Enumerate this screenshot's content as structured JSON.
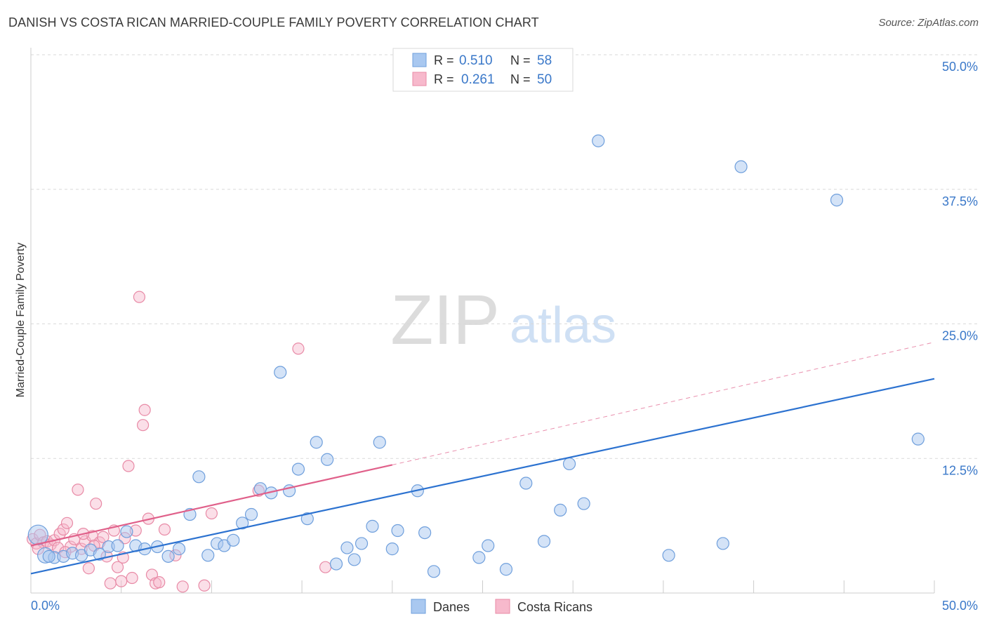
{
  "title": "DANISH VS COSTA RICAN MARRIED-COUPLE FAMILY POVERTY CORRELATION CHART",
  "source": "Source: ZipAtlas.com",
  "watermark": {
    "zip": "ZIP",
    "atlas": "atlas"
  },
  "colors": {
    "danes_fill": "#a9c8f0",
    "danes_stroke": "#6f9fdc",
    "danes_line": "#2c72d0",
    "costa_fill": "#f7b9cc",
    "costa_stroke": "#e88aa6",
    "costa_line": "#e0608a",
    "axis_text": "#3a78c9",
    "grid": "#d9d9d9"
  },
  "legend": {
    "rows": [
      {
        "r_label": "R =",
        "r_value": "0.510",
        "n_label": "N =",
        "n_value": "58"
      },
      {
        "r_label": "R =",
        "r_value": "0.261",
        "n_label": "N =",
        "n_value": "50"
      }
    ]
  },
  "bottom_legend": {
    "danes": "Danes",
    "costa": "Costa Ricans"
  },
  "chart_data": {
    "type": "scatter",
    "title": "DANISH VS COSTA RICAN MARRIED-COUPLE FAMILY POVERTY CORRELATION CHART",
    "xlabel": "",
    "ylabel": "Married-Couple Family Poverty",
    "xlim": [
      0,
      50
    ],
    "ylim": [
      0,
      50
    ],
    "x_tick_labels": [
      "0.0%",
      "50.0%"
    ],
    "y_tick_labels": [
      "12.5%",
      "25.0%",
      "37.5%",
      "50.0%"
    ],
    "y_tick_values": [
      12.5,
      25.0,
      37.5,
      50.0
    ],
    "series": [
      {
        "name": "Danes",
        "R": 0.51,
        "N": 58,
        "trend": {
          "x": [
            0,
            50
          ],
          "y": [
            1.8,
            19.9
          ]
        },
        "points": [
          [
            0.4,
            5.4
          ],
          [
            0.8,
            3.5
          ],
          [
            1.3,
            3.3
          ],
          [
            1.8,
            3.4
          ],
          [
            2.3,
            3.7
          ],
          [
            2.8,
            3.5
          ],
          [
            3.3,
            4.0
          ],
          [
            3.8,
            3.6
          ],
          [
            4.3,
            4.3
          ],
          [
            4.8,
            4.4
          ],
          [
            5.3,
            5.7
          ],
          [
            5.8,
            4.4
          ],
          [
            6.3,
            4.1
          ],
          [
            7.0,
            4.3
          ],
          [
            7.6,
            3.4
          ],
          [
            8.2,
            4.1
          ],
          [
            8.8,
            7.3
          ],
          [
            9.3,
            10.8
          ],
          [
            9.8,
            3.5
          ],
          [
            10.3,
            4.6
          ],
          [
            10.7,
            4.4
          ],
          [
            11.2,
            4.9
          ],
          [
            11.7,
            6.5
          ],
          [
            12.2,
            7.3
          ],
          [
            12.7,
            9.7
          ],
          [
            13.3,
            9.3
          ],
          [
            13.8,
            20.5
          ],
          [
            14.3,
            9.5
          ],
          [
            14.8,
            11.5
          ],
          [
            15.3,
            6.9
          ],
          [
            15.8,
            14.0
          ],
          [
            16.4,
            12.4
          ],
          [
            16.9,
            2.7
          ],
          [
            17.5,
            4.2
          ],
          [
            17.9,
            3.1
          ],
          [
            18.3,
            4.6
          ],
          [
            18.9,
            6.2
          ],
          [
            19.3,
            14.0
          ],
          [
            20.0,
            4.1
          ],
          [
            20.3,
            5.8
          ],
          [
            21.4,
            9.5
          ],
          [
            21.8,
            5.6
          ],
          [
            22.3,
            2.0
          ],
          [
            24.8,
            3.3
          ],
          [
            25.3,
            4.4
          ],
          [
            26.3,
            2.2
          ],
          [
            27.4,
            10.2
          ],
          [
            28.4,
            4.8
          ],
          [
            29.3,
            7.7
          ],
          [
            29.8,
            12.0
          ],
          [
            30.6,
            8.3
          ],
          [
            31.4,
            42.0
          ],
          [
            35.3,
            3.5
          ],
          [
            38.3,
            4.6
          ],
          [
            39.3,
            39.6
          ],
          [
            44.6,
            36.5
          ],
          [
            49.1,
            14.3
          ],
          [
            1.0,
            3.4
          ]
        ]
      },
      {
        "name": "Costa Ricans",
        "R": 0.261,
        "N": 50,
        "trend": {
          "x": [
            0,
            20.0
          ],
          "y": [
            4.4,
            11.9
          ]
        },
        "trend_extrapolated": {
          "x": [
            20.0,
            50
          ],
          "y": [
            11.9,
            23.3
          ]
        },
        "points": [
          [
            0.1,
            5.0
          ],
          [
            0.3,
            4.6
          ],
          [
            0.5,
            5.4
          ],
          [
            0.7,
            4.7
          ],
          [
            0.9,
            4.8
          ],
          [
            1.1,
            4.5
          ],
          [
            1.3,
            4.9
          ],
          [
            1.6,
            5.5
          ],
          [
            1.8,
            5.9
          ],
          [
            2.0,
            6.5
          ],
          [
            2.2,
            4.3
          ],
          [
            2.4,
            5.0
          ],
          [
            2.6,
            9.6
          ],
          [
            2.8,
            4.1
          ],
          [
            3.0,
            4.8
          ],
          [
            3.2,
            2.3
          ],
          [
            3.4,
            5.3
          ],
          [
            3.6,
            8.3
          ],
          [
            3.8,
            4.7
          ],
          [
            4.0,
            5.2
          ],
          [
            4.2,
            3.4
          ],
          [
            4.4,
            0.9
          ],
          [
            4.6,
            5.8
          ],
          [
            4.8,
            2.4
          ],
          [
            5.0,
            1.1
          ],
          [
            5.2,
            5.1
          ],
          [
            5.4,
            11.8
          ],
          [
            5.6,
            1.4
          ],
          [
            5.8,
            5.8
          ],
          [
            6.0,
            27.5
          ],
          [
            6.2,
            15.6
          ],
          [
            6.3,
            17.0
          ],
          [
            6.5,
            6.9
          ],
          [
            6.7,
            1.7
          ],
          [
            6.9,
            0.9
          ],
          [
            7.1,
            1.0
          ],
          [
            7.4,
            5.9
          ],
          [
            8.0,
            3.5
          ],
          [
            8.4,
            0.6
          ],
          [
            9.6,
            0.7
          ],
          [
            10.0,
            7.4
          ],
          [
            12.6,
            9.5
          ],
          [
            14.8,
            22.7
          ],
          [
            16.3,
            2.4
          ],
          [
            1.5,
            4.2
          ],
          [
            2.9,
            5.5
          ],
          [
            0.4,
            4.1
          ],
          [
            1.9,
            3.8
          ],
          [
            3.5,
            4.4
          ],
          [
            5.1,
            3.3
          ]
        ]
      }
    ]
  }
}
